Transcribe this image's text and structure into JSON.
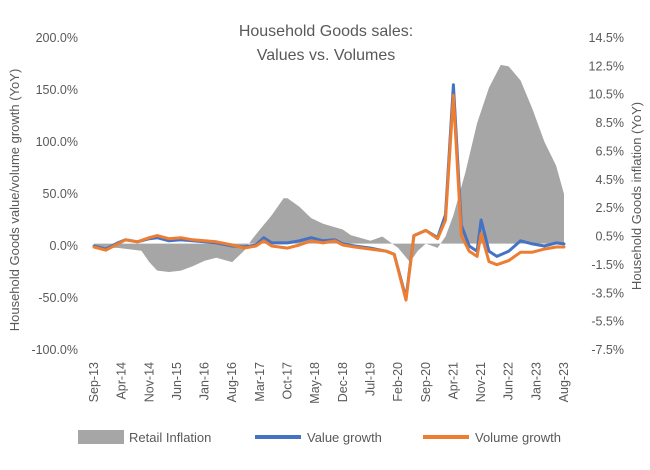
{
  "chart_data": {
    "type": "combo",
    "title_line1": "Household Goods sales:",
    "title_line2": "Values vs. Volumes",
    "ylabel_left": "Household Goods value/volume  growth (YoY)",
    "ylabel_right": "Household Goods inflation (YoY)",
    "y_left_range": [
      -100,
      200
    ],
    "y_left_ticks": [
      "200.0%",
      "150.0%",
      "100.0%",
      "50.0%",
      "0.0%",
      "-50.0%",
      "-100.0%"
    ],
    "y_right_range": [
      -7.5,
      14.5
    ],
    "y_right_ticks": [
      "14.5%",
      "12.5%",
      "10.5%",
      "8.5%",
      "6.5%",
      "4.5%",
      "2.5%",
      "0.5%",
      "-1.5%",
      "-3.5%",
      "-5.5%",
      "-7.5%"
    ],
    "x_tick_labels": [
      "Sep-13",
      "Apr-14",
      "Nov-14",
      "Jun-15",
      "Jan-16",
      "Aug-16",
      "Mar-17",
      "Oct-17",
      "May-18",
      "Dec-18",
      "Jul-19",
      "Feb-20",
      "Sep-20",
      "Apr-21",
      "Nov-21",
      "Jun-22",
      "Jan-23",
      "Aug-23"
    ],
    "x_start": "Sep-13",
    "x_end": "Aug-23",
    "legend": [
      "Retail Inflation",
      "Value growth",
      "Volume growth"
    ],
    "colors": {
      "inflation": "#a6a6a6",
      "value": "#4472c4",
      "volume": "#ed7d31",
      "text": "#595959"
    },
    "series": [
      {
        "name": "Retail Inflation",
        "axis": "right",
        "kind": "area",
        "points": [
          [
            "Sep-13",
            -0.3
          ],
          [
            "Mar-14",
            -0.3
          ],
          [
            "Sep-14",
            -0.5
          ],
          [
            "Nov-14",
            -1.3
          ],
          [
            "Jan-15",
            -1.9
          ],
          [
            "Apr-15",
            -2.0
          ],
          [
            "Jul-15",
            -1.9
          ],
          [
            "Oct-15",
            -1.6
          ],
          [
            "Jan-16",
            -1.2
          ],
          [
            "Apr-16",
            -1.0
          ],
          [
            "Aug-16",
            -1.3
          ],
          [
            "Nov-16",
            -0.5
          ],
          [
            "Jan-17",
            0.3
          ],
          [
            "Mar-17",
            1.0
          ],
          [
            "Jun-17",
            2.0
          ],
          [
            "Sep-17",
            3.2
          ],
          [
            "Oct-17",
            3.2
          ],
          [
            "Jan-18",
            2.6
          ],
          [
            "Apr-18",
            1.8
          ],
          [
            "Jul-18",
            1.4
          ],
          [
            "Dec-18",
            1.0
          ],
          [
            "Feb-19",
            0.6
          ],
          [
            "Jul-19",
            0.2
          ],
          [
            "Oct-19",
            0.5
          ],
          [
            "Feb-20",
            -0.3
          ],
          [
            "May-20",
            -1.3
          ],
          [
            "Jul-20",
            -0.5
          ],
          [
            "Sep-20",
            0.0
          ],
          [
            "Dec-20",
            -0.3
          ],
          [
            "Feb-21",
            0.5
          ],
          [
            "Apr-21",
            2.0
          ],
          [
            "Jul-21",
            5.0
          ],
          [
            "Oct-21",
            8.5
          ],
          [
            "Jan-22",
            11.0
          ],
          [
            "Apr-22",
            12.6
          ],
          [
            "Jun-22",
            12.5
          ],
          [
            "Sep-22",
            11.5
          ],
          [
            "Dec-22",
            9.5
          ],
          [
            "Mar-23",
            7.2
          ],
          [
            "Jun-23",
            5.5
          ],
          [
            "Aug-23",
            3.5
          ]
        ]
      },
      {
        "name": "Value growth",
        "axis": "left",
        "kind": "line",
        "points": [
          [
            "Sep-13",
            0
          ],
          [
            "Dec-13",
            -3
          ],
          [
            "Mar-14",
            3
          ],
          [
            "May-14",
            6
          ],
          [
            "Aug-14",
            4
          ],
          [
            "Nov-14",
            7
          ],
          [
            "Jan-15",
            8
          ],
          [
            "Apr-15",
            5
          ],
          [
            "Jul-15",
            6
          ],
          [
            "Oct-15",
            5
          ],
          [
            "Jan-16",
            4
          ],
          [
            "Apr-16",
            3
          ],
          [
            "Aug-16",
            0
          ],
          [
            "Nov-16",
            -1
          ],
          [
            "Feb-17",
            1
          ],
          [
            "Apr-17",
            8
          ],
          [
            "Jun-17",
            3
          ],
          [
            "Oct-17",
            3
          ],
          [
            "Jan-18",
            5
          ],
          [
            "Apr-18",
            8
          ],
          [
            "Jul-18",
            5
          ],
          [
            "Oct-18",
            6
          ],
          [
            "Dec-18",
            2
          ],
          [
            "Mar-19",
            0
          ],
          [
            "Jul-19",
            -2
          ],
          [
            "Nov-19",
            -5
          ],
          [
            "Jan-20",
            -8
          ],
          [
            "Apr-20",
            -50
          ],
          [
            "Jun-20",
            10
          ],
          [
            "Sep-20",
            15
          ],
          [
            "Dec-20",
            8
          ],
          [
            "Feb-21",
            30
          ],
          [
            "Apr-21",
            155
          ],
          [
            "Jun-21",
            20
          ],
          [
            "Aug-21",
            0
          ],
          [
            "Oct-21",
            -5
          ],
          [
            "Nov-21",
            25
          ],
          [
            "Jan-22",
            -5
          ],
          [
            "Mar-22",
            -10
          ],
          [
            "Jun-22",
            -5
          ],
          [
            "Sep-22",
            5
          ],
          [
            "Dec-22",
            2
          ],
          [
            "Mar-23",
            0
          ],
          [
            "Jun-23",
            3
          ],
          [
            "Aug-23",
            2
          ]
        ]
      },
      {
        "name": "Volume growth",
        "axis": "left",
        "kind": "line",
        "points": [
          [
            "Sep-13",
            -1
          ],
          [
            "Dec-13",
            -4
          ],
          [
            "Mar-14",
            2
          ],
          [
            "May-14",
            6
          ],
          [
            "Aug-14",
            4
          ],
          [
            "Nov-14",
            8
          ],
          [
            "Jan-15",
            10
          ],
          [
            "Apr-15",
            7
          ],
          [
            "Jul-15",
            8
          ],
          [
            "Oct-15",
            6
          ],
          [
            "Jan-16",
            5
          ],
          [
            "Apr-16",
            4
          ],
          [
            "Aug-16",
            1
          ],
          [
            "Nov-16",
            -2
          ],
          [
            "Feb-17",
            0
          ],
          [
            "Apr-17",
            5
          ],
          [
            "Jun-17",
            0
          ],
          [
            "Oct-17",
            -2
          ],
          [
            "Jan-18",
            1
          ],
          [
            "Apr-18",
            5
          ],
          [
            "Jul-18",
            3
          ],
          [
            "Oct-18",
            5
          ],
          [
            "Dec-18",
            1
          ],
          [
            "Mar-19",
            -1
          ],
          [
            "Jul-19",
            -3
          ],
          [
            "Nov-19",
            -5
          ],
          [
            "Jan-20",
            -8
          ],
          [
            "Apr-20",
            -52
          ],
          [
            "Jun-20",
            10
          ],
          [
            "Sep-20",
            15
          ],
          [
            "Dec-20",
            7
          ],
          [
            "Feb-21",
            25
          ],
          [
            "Apr-21",
            145
          ],
          [
            "Jun-21",
            10
          ],
          [
            "Aug-21",
            -5
          ],
          [
            "Oct-21",
            -10
          ],
          [
            "Nov-21",
            12
          ],
          [
            "Jan-22",
            -15
          ],
          [
            "Mar-22",
            -18
          ],
          [
            "Jun-22",
            -14
          ],
          [
            "Sep-22",
            -6
          ],
          [
            "Dec-22",
            -6
          ],
          [
            "Mar-23",
            -3
          ],
          [
            "Jun-23",
            -1
          ],
          [
            "Aug-23",
            -1
          ]
        ]
      }
    ]
  }
}
